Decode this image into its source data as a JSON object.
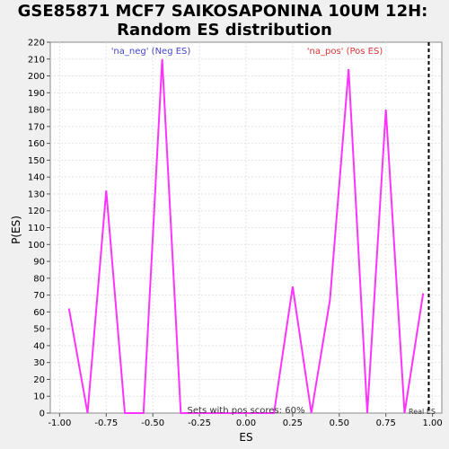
{
  "chart_data": {
    "type": "line",
    "title_line1": "GSE85871 MCF7 SAIKOSAPONINA 10UM 12H:",
    "title_line2": "Random ES distribution",
    "xlabel": "ES",
    "ylabel": "P(ES)",
    "xlim": [
      -1.05,
      1.05
    ],
    "ylim": [
      0,
      220
    ],
    "xticks": [
      -1.0,
      -0.75,
      -0.5,
      -0.25,
      0.0,
      0.25,
      0.5,
      0.75,
      1.0
    ],
    "xtick_labels": [
      "-1.00",
      "-0.75",
      "-0.50",
      "-0.25",
      "0.00",
      "0.25",
      "0.50",
      "0.75",
      "1.00"
    ],
    "yticks": [
      0,
      10,
      20,
      30,
      40,
      50,
      60,
      70,
      80,
      90,
      100,
      110,
      120,
      130,
      140,
      150,
      160,
      170,
      180,
      190,
      200,
      210,
      220
    ],
    "series": [
      {
        "name": "P(ES)",
        "color": "#ff33ff",
        "x": [
          -0.95,
          -0.85,
          -0.75,
          -0.65,
          -0.55,
          -0.45,
          -0.35,
          -0.25,
          -0.15,
          -0.05,
          0.05,
          0.15,
          0.25,
          0.35,
          0.45,
          0.55,
          0.65,
          0.75,
          0.85,
          0.95
        ],
        "y": [
          62,
          0,
          132,
          0,
          0,
          210,
          0,
          0,
          0,
          0,
          0,
          0,
          75,
          0,
          67,
          204,
          0,
          180,
          0,
          71
        ]
      }
    ],
    "legend_neg": "'na_neg' (Neg ES)",
    "legend_pos": "'na_pos' (Pos ES)",
    "neg_color": "#4444cc",
    "pos_color": "#dd3333",
    "annotation": "Sets with pos scores: 60%",
    "real_es_label": "Real ES",
    "real_es_value": 0.98
  }
}
